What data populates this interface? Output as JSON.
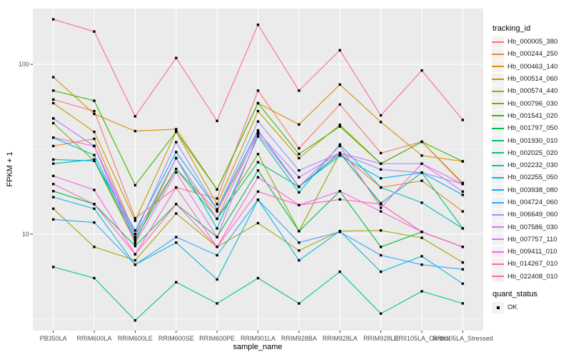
{
  "chart_data": {
    "type": "line",
    "title": "",
    "xlabel": "sample_name",
    "ylabel": "FPKM + 1",
    "y_scale": "log10",
    "ylim": [
      2.7,
      213
    ],
    "y_ticks": [
      10,
      100
    ],
    "y_minor_ticks": [
      3.162,
      31.62
    ],
    "grid": true,
    "panel_bg": "#EBEBEB",
    "gridline_color": "#FFFFFF",
    "tick_color": "#333333",
    "axis_text_color": "#4D4D4D",
    "marker": "black-square",
    "legend_title": "tracking_id",
    "legend2_title": "quant_status",
    "legend2_items": [
      {
        "label": "OK"
      }
    ],
    "x_categories": [
      "PB350LA",
      "RRIM600LA",
      "RRIM600LE",
      "RRIM600SE",
      "RRIM600PE",
      "RRIM901LA",
      "RRIM928BA",
      "RRIM928LA",
      "RRIM928LE",
      "RRII105LA_Control",
      "RRII105LA_Stressed"
    ],
    "series": [
      {
        "name": "Hb_000005_380",
        "color": "#F8766D",
        "values": [
          62,
          53,
          12.4,
          18.8,
          16.2,
          70,
          32,
          58,
          30,
          35,
          19.7
        ]
      },
      {
        "name": "Hb_000244_250",
        "color": "#EA8331",
        "values": [
          33,
          36.4,
          10,
          24.2,
          13.6,
          38.9,
          19,
          30,
          18.8,
          20.6,
          13.6
        ]
      },
      {
        "name": "Hb_000463_140",
        "color": "#D89000",
        "values": [
          84,
          51,
          40.4,
          41.5,
          18.3,
          59,
          44.2,
          76,
          45.7,
          29,
          26.8
        ]
      },
      {
        "name": "Hb_000514_060",
        "color": "#C09B00",
        "values": [
          59,
          40,
          12,
          40.2,
          15,
          53,
          28,
          44,
          26,
          35,
          20
        ]
      },
      {
        "name": "Hb_000574_440",
        "color": "#A3A500",
        "values": [
          14.1,
          8.4,
          7.0,
          13.2,
          8.4,
          11.6,
          8.0,
          10.4,
          10.5,
          9.5,
          6.8
        ]
      },
      {
        "name": "Hb_000796_030",
        "color": "#7CAE00",
        "values": [
          45,
          27,
          9.0,
          28,
          12.3,
          29.6,
          10.4,
          30,
          15,
          10.3,
          8.4
        ]
      },
      {
        "name": "Hb_001541_020",
        "color": "#39B600",
        "values": [
          70,
          61,
          19.4,
          40,
          18.3,
          59,
          29.6,
          43,
          26,
          35,
          26.8
        ]
      },
      {
        "name": "Hb_001797_050",
        "color": "#00BB4E",
        "values": [
          17.9,
          15,
          8.5,
          15,
          9.6,
          23.7,
          10.4,
          17.9,
          8.4,
          10.3,
          8.4
        ]
      },
      {
        "name": "Hb_001930_010",
        "color": "#00BF7D",
        "values": [
          26,
          27.5,
          9.3,
          24.2,
          12.3,
          26.5,
          19,
          30,
          15.2,
          23,
          10.8
        ]
      },
      {
        "name": "Hb_002025_020",
        "color": "#00C1A3",
        "values": [
          6.4,
          5.5,
          3.1,
          5.2,
          3.9,
          5.5,
          3.9,
          6.0,
          3.4,
          4.6,
          3.9
        ]
      },
      {
        "name": "Hb_002232_030",
        "color": "#00BFC4",
        "values": [
          37,
          29.2,
          9.6,
          28,
          10.8,
          37.6,
          17.6,
          33.7,
          18.8,
          15.3,
          10.8
        ]
      },
      {
        "name": "Hb_002255_050",
        "color": "#00BAE0",
        "values": [
          16.5,
          14.1,
          6.6,
          8.9,
          5.4,
          15.9,
          7.0,
          10.4,
          6.0,
          7.4,
          5.1
        ]
      },
      {
        "name": "Hb_003938_080",
        "color": "#00B0F6",
        "values": [
          27.5,
          27,
          10.5,
          30.4,
          14,
          40.8,
          19,
          29,
          21.3,
          23,
          17
        ]
      },
      {
        "name": "Hb_004724_060",
        "color": "#35A2FF",
        "values": [
          12.2,
          11.7,
          6.6,
          9.6,
          7.5,
          15.9,
          8.9,
          10.3,
          7.5,
          6.6,
          6.2
        ]
      },
      {
        "name": "Hb_006649_060",
        "color": "#9590FF",
        "values": [
          48,
          33,
          10,
          34.8,
          14,
          46,
          23.7,
          30,
          24,
          23,
          19.7
        ]
      },
      {
        "name": "Hb_007586_030",
        "color": "#C77CFF",
        "values": [
          48,
          33,
          9.6,
          28,
          12.3,
          40,
          21.6,
          30,
          26,
          26,
          17.8
        ]
      },
      {
        "name": "Hb_007757_110",
        "color": "#E76BF3",
        "values": [
          37,
          33,
          8.8,
          23.1,
          9.6,
          39,
          19,
          33,
          14.3,
          26,
          19.7
        ]
      },
      {
        "name": "Hb_009411_010",
        "color": "#FA62DB",
        "values": [
          22,
          18.2,
          7.6,
          18.8,
          8.4,
          21.6,
          14.8,
          17.9,
          13.6,
          10.3,
          8.4
        ]
      },
      {
        "name": "Hb_014267_010",
        "color": "#FF62BC",
        "values": [
          19.7,
          15,
          7.6,
          15,
          8.4,
          17.8,
          14.8,
          16,
          15,
          10.3,
          8.4
        ]
      },
      {
        "name": "Hb_022408_010",
        "color": "#FF6A98",
        "values": [
          184,
          156,
          49.4,
          109,
          46.4,
          171,
          70,
          121,
          50,
          92,
          47
        ]
      }
    ]
  }
}
